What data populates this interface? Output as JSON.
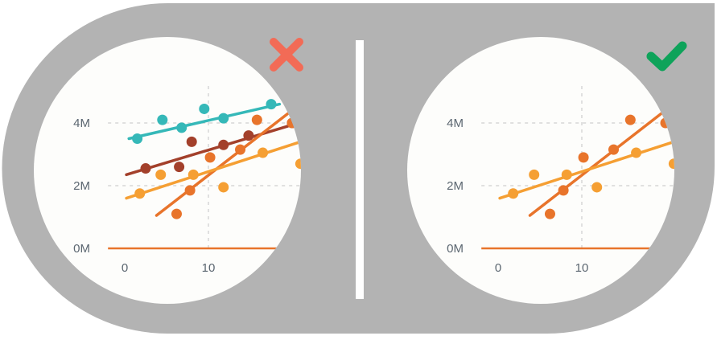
{
  "colors": {
    "background_shape": "#b3b3b3",
    "divider": "#ffffff",
    "plot_background": "#fdfdfb",
    "grid": "#d6d6d6",
    "axis_line": "#e8742b",
    "tick_text": "#5b6670",
    "wrong_mark": "#f26b56",
    "right_mark": "#0ea35a",
    "series_teal": "#35b8b8",
    "series_brown": "#a3402b",
    "series_orange": "#e8742b",
    "series_yellow": "#f59f33"
  },
  "panels": [
    {
      "id": "wrong",
      "status_icon": "x-mark-icon",
      "yticks": [
        "4M",
        "2M",
        "0M"
      ],
      "xticks": [
        "0",
        "10"
      ]
    },
    {
      "id": "right",
      "status_icon": "check-mark-icon",
      "yticks": [
        "4M",
        "2M",
        "0M"
      ],
      "xticks": [
        "0",
        "10"
      ]
    }
  ],
  "chart_data": [
    {
      "type": "scatter",
      "ylim": [
        0,
        4.5
      ],
      "xlim": [
        -2,
        20
      ],
      "grid": true,
      "ytick_values": [
        4,
        2,
        0
      ],
      "xtick_values": [
        0,
        10
      ],
      "series": [
        {
          "color": "teal",
          "points": [
            [
              1.5,
              3.5
            ],
            [
              4.5,
              4.1
            ],
            [
              6.8,
              3.85
            ],
            [
              9.5,
              4.45
            ],
            [
              11.8,
              4.15
            ],
            [
              17.5,
              4.6
            ]
          ],
          "trend": [
            [
              0.5,
              3.5
            ],
            [
              18.5,
              4.6
            ]
          ]
        },
        {
          "color": "brown",
          "points": [
            [
              2.5,
              2.55
            ],
            [
              6.5,
              2.6
            ],
            [
              8,
              3.4
            ],
            [
              11.8,
              3.3
            ],
            [
              14.8,
              3.6
            ],
            [
              20,
              4.0
            ]
          ],
          "trend": [
            [
              0.2,
              2.35
            ],
            [
              19.5,
              3.9
            ]
          ]
        },
        {
          "color": "orange",
          "points": [
            [
              6.2,
              1.1
            ],
            [
              7.8,
              1.85
            ],
            [
              10.2,
              2.9
            ],
            [
              13.8,
              3.15
            ],
            [
              15.8,
              4.1
            ],
            [
              20,
              4.0
            ]
          ],
          "trend": [
            [
              3.8,
              1.05
            ],
            [
              19.5,
              4.3
            ]
          ]
        },
        {
          "color": "yellow",
          "points": [
            [
              1.8,
              1.75
            ],
            [
              4.3,
              2.35
            ],
            [
              8.2,
              2.35
            ],
            [
              11.8,
              1.95
            ],
            [
              16.5,
              3.05
            ],
            [
              21,
              2.7
            ]
          ],
          "trend": [
            [
              0.2,
              1.6
            ],
            [
              21,
              3.4
            ]
          ]
        }
      ]
    },
    {
      "type": "scatter",
      "ylim": [
        0,
        4.5
      ],
      "xlim": [
        -2,
        20
      ],
      "grid": true,
      "ytick_values": [
        4,
        2,
        0
      ],
      "xtick_values": [
        0,
        10
      ],
      "series": [
        {
          "color": "orange",
          "points": [
            [
              6.2,
              1.1
            ],
            [
              7.8,
              1.85
            ],
            [
              10.2,
              2.9
            ],
            [
              13.8,
              3.15
            ],
            [
              15.8,
              4.1
            ],
            [
              20,
              4.0
            ]
          ],
          "trend": [
            [
              3.8,
              1.05
            ],
            [
              19.5,
              4.3
            ]
          ]
        },
        {
          "color": "yellow",
          "points": [
            [
              1.8,
              1.75
            ],
            [
              4.3,
              2.35
            ],
            [
              8.2,
              2.35
            ],
            [
              11.8,
              1.95
            ],
            [
              16.5,
              3.05
            ],
            [
              21,
              2.7
            ]
          ],
          "trend": [
            [
              0.2,
              1.6
            ],
            [
              21,
              3.4
            ]
          ]
        }
      ]
    }
  ]
}
